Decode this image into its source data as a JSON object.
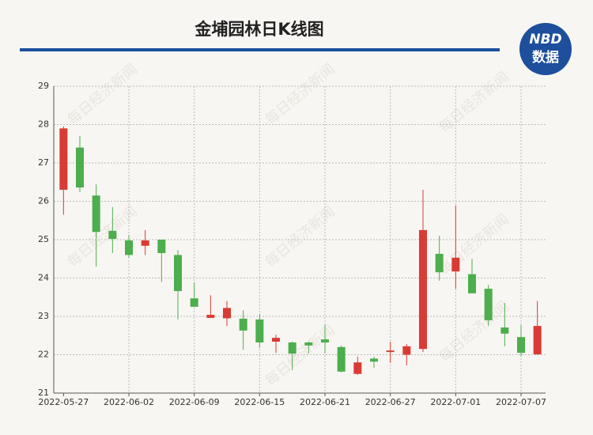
{
  "chart_data": {
    "type": "candlestick",
    "title": "金埔园林日K线图",
    "categories": [
      "2022-05-27",
      null,
      null,
      null,
      "2022-06-02",
      null,
      null,
      null,
      "2022-06-09",
      null,
      null,
      null,
      "2022-06-15",
      null,
      null,
      null,
      "2022-06-21",
      null,
      null,
      null,
      "2022-06-27",
      null,
      null,
      null,
      "2022-07-01",
      null,
      null,
      null,
      "2022-07-07",
      null
    ],
    "open": [
      26.3,
      27.4,
      26.15,
      25.23,
      24.98,
      24.84,
      25.0,
      24.6,
      23.47,
      22.96,
      22.95,
      22.94,
      22.92,
      22.34,
      22.32,
      22.32,
      22.4,
      22.2,
      21.5,
      21.9,
      22.07,
      22.0,
      22.15,
      24.63,
      24.17,
      24.1,
      23.72,
      22.71,
      22.46,
      22.01
    ],
    "close": [
      27.9,
      26.36,
      25.2,
      25.02,
      24.6,
      24.98,
      24.65,
      23.66,
      23.25,
      23.04,
      23.22,
      22.63,
      22.32,
      22.44,
      22.03,
      22.24,
      22.32,
      21.56,
      21.8,
      21.82,
      22.11,
      22.22,
      25.25,
      24.15,
      24.53,
      23.6,
      22.9,
      22.55,
      22.05,
      22.75
    ],
    "high": [
      27.95,
      27.7,
      26.44,
      25.85,
      25.12,
      25.25,
      25.0,
      24.73,
      23.89,
      23.55,
      23.4,
      23.16,
      23.06,
      22.52,
      22.34,
      22.34,
      22.77,
      22.24,
      21.95,
      21.95,
      22.34,
      22.28,
      26.3,
      25.1,
      25.89,
      24.5,
      23.82,
      23.35,
      22.77,
      23.4
    ],
    "low": [
      25.65,
      26.24,
      24.3,
      24.65,
      24.53,
      24.6,
      23.9,
      22.92,
      23.25,
      22.96,
      22.75,
      22.13,
      22.18,
      22.05,
      21.6,
      22.03,
      22.03,
      21.54,
      21.48,
      21.66,
      21.79,
      21.72,
      22.07,
      23.93,
      23.72,
      23.6,
      22.75,
      22.22,
      21.95,
      22.0
    ],
    "up_color": "#d93b35",
    "down_color": "#4cae4c",
    "ylim": [
      21,
      29
    ],
    "yticks": [
      21,
      22,
      23,
      24,
      25,
      26,
      27,
      28,
      29
    ],
    "grid": true
  },
  "logo": {
    "top": "NBD",
    "bottom": "数据"
  },
  "watermark": "每日经济新闻"
}
